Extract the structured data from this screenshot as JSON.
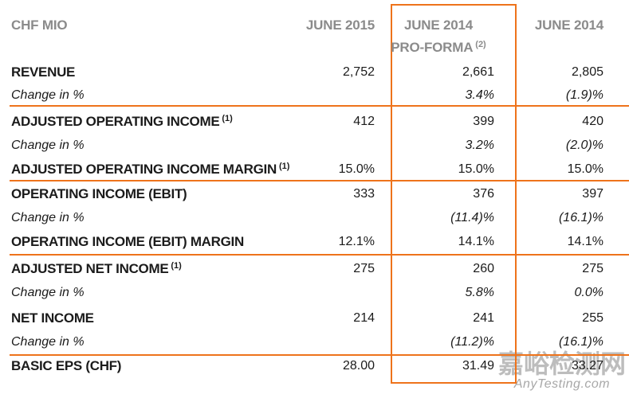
{
  "header": {
    "col_label": "CHF MIO",
    "col1": "JUNE 2015",
    "col2_line1": "JUNE 2014",
    "col2_line2": "PRO-FORMA",
    "col2_sup": "(2)",
    "col3": "JUNE 2014"
  },
  "colors": {
    "accent_orange": "#EE731B",
    "header_gray": "#8B8B8B",
    "text": "#1B1B1B",
    "watermark_cjk": "#BDBDBD",
    "watermark_latin": "#A8A8A8"
  },
  "table": {
    "columns": [
      "JUNE 2015",
      "JUNE 2014 PRO-FORMA (2)",
      "JUNE 2014"
    ],
    "rows": [
      {
        "type": "data",
        "label": "REVENUE",
        "sup": "",
        "italic": false,
        "values": [
          "2,752",
          "2,661",
          "2,805"
        ],
        "values_italic": false
      },
      {
        "type": "data",
        "label": "Change in %",
        "sup": "",
        "italic": true,
        "values": [
          "",
          "3.4%",
          "(1.9)%"
        ],
        "values_italic": true
      },
      {
        "type": "divider"
      },
      {
        "type": "data",
        "label": "ADJUSTED OPERATING INCOME",
        "sup": "(1)",
        "italic": false,
        "values": [
          "412",
          "399",
          "420"
        ],
        "values_italic": false
      },
      {
        "type": "data",
        "label": "Change in %",
        "sup": "",
        "italic": true,
        "values": [
          "",
          "3.2%",
          "(2.0)%"
        ],
        "values_italic": true
      },
      {
        "type": "data",
        "label": "ADJUSTED OPERATING INCOME MARGIN",
        "sup": "(1)",
        "italic": false,
        "values": [
          "15.0%",
          "15.0%",
          "15.0%"
        ],
        "values_italic": false
      },
      {
        "type": "divider"
      },
      {
        "type": "data",
        "label": "OPERATING INCOME (EBIT)",
        "sup": "",
        "italic": false,
        "values": [
          "333",
          "376",
          "397"
        ],
        "values_italic": false
      },
      {
        "type": "data",
        "label": "Change in %",
        "sup": "",
        "italic": true,
        "values": [
          "",
          "(11.4)%",
          "(16.1)%"
        ],
        "values_italic": true
      },
      {
        "type": "data",
        "label": "OPERATING INCOME (EBIT) MARGIN",
        "sup": "",
        "italic": false,
        "values": [
          "12.1%",
          "14.1%",
          "14.1%"
        ],
        "values_italic": false
      },
      {
        "type": "divider"
      },
      {
        "type": "data",
        "label": "ADJUSTED NET INCOME",
        "sup": "(1)",
        "italic": false,
        "values": [
          "275",
          "260",
          "275"
        ],
        "values_italic": false
      },
      {
        "type": "data",
        "label": "Change in %",
        "sup": "",
        "italic": true,
        "values": [
          "",
          "5.8%",
          "0.0%"
        ],
        "values_italic": true
      },
      {
        "type": "data",
        "label": "NET INCOME",
        "sup": "",
        "italic": false,
        "values": [
          "214",
          "241",
          "255"
        ],
        "values_italic": false
      },
      {
        "type": "data",
        "label": "Change in %",
        "sup": "",
        "italic": true,
        "values": [
          "",
          "(11.2)%",
          "(16.1)%"
        ],
        "values_italic": true
      },
      {
        "type": "divider"
      },
      {
        "type": "data",
        "label": "BASIC EPS (CHF)",
        "sup": "",
        "italic": false,
        "values": [
          "28.00",
          "31.49",
          "33.27"
        ],
        "values_italic": false
      }
    ]
  },
  "watermark": {
    "cjk": "嘉峪检测网",
    "latin": "AnyTesting.com"
  }
}
